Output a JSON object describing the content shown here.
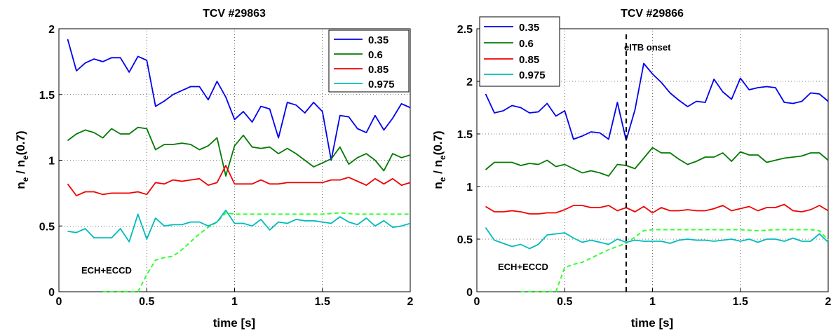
{
  "chart_data": [
    {
      "type": "line",
      "title": "TCV #29863",
      "xlabel": "time [s]",
      "ylabel": "n_e / n_e(0.7)",
      "ylabel_parts": {
        "n": "n",
        "e": "e",
        "mid": " / n",
        "e2": "e",
        "tail": "(0.7)"
      },
      "xlim": [
        0,
        2
      ],
      "ylim": [
        0,
        2
      ],
      "xticks": [
        "0",
        "0.5",
        "1",
        "1.5",
        "2"
      ],
      "yticks": [
        "0",
        "0.5",
        "1",
        "1.5",
        "2"
      ],
      "grid": true,
      "legend_position": "top-right",
      "x": [
        0.05,
        0.1,
        0.15,
        0.2,
        0.25,
        0.3,
        0.35,
        0.4,
        0.45,
        0.5,
        0.55,
        0.6,
        0.65,
        0.7,
        0.75,
        0.8,
        0.85,
        0.9,
        0.95,
        1.0,
        1.05,
        1.1,
        1.15,
        1.2,
        1.25,
        1.3,
        1.35,
        1.4,
        1.45,
        1.5,
        1.55,
        1.6,
        1.65,
        1.7,
        1.75,
        1.8,
        1.85,
        1.9,
        1.95,
        2.0
      ],
      "series": [
        {
          "name": "0.35",
          "color": "#0000ee",
          "values": [
            1.92,
            1.68,
            1.74,
            1.77,
            1.75,
            1.78,
            1.78,
            1.67,
            1.79,
            1.76,
            1.41,
            1.45,
            1.5,
            1.53,
            1.56,
            1.56,
            1.46,
            1.6,
            1.48,
            1.31,
            1.37,
            1.29,
            1.41,
            1.39,
            1.17,
            1.44,
            1.42,
            1.36,
            1.44,
            1.37,
            1.0,
            1.34,
            1.33,
            1.24,
            1.21,
            1.34,
            1.23,
            1.32,
            1.43,
            1.4
          ]
        },
        {
          "name": "0.6",
          "color": "#007a00",
          "values": [
            1.15,
            1.2,
            1.23,
            1.21,
            1.17,
            1.24,
            1.2,
            1.2,
            1.25,
            1.24,
            1.08,
            1.12,
            1.12,
            1.13,
            1.12,
            1.08,
            1.11,
            1.17,
            0.88,
            1.11,
            1.19,
            1.1,
            1.09,
            1.1,
            1.05,
            1.09,
            1.05,
            1.0,
            0.95,
            0.98,
            1.01,
            1.1,
            0.97,
            1.02,
            1.05,
            1.0,
            0.92,
            1.05,
            1.02,
            1.04
          ]
        },
        {
          "name": "0.85",
          "color": "#ee0000",
          "values": [
            0.82,
            0.73,
            0.76,
            0.76,
            0.74,
            0.75,
            0.75,
            0.75,
            0.76,
            0.74,
            0.83,
            0.82,
            0.85,
            0.84,
            0.85,
            0.86,
            0.81,
            0.83,
            0.96,
            0.82,
            0.82,
            0.82,
            0.85,
            0.82,
            0.82,
            0.83,
            0.83,
            0.83,
            0.83,
            0.83,
            0.85,
            0.85,
            0.87,
            0.84,
            0.81,
            0.86,
            0.82,
            0.86,
            0.81,
            0.83
          ]
        },
        {
          "name": "0.975",
          "color": "#00bbbb",
          "values": [
            0.46,
            0.45,
            0.48,
            0.41,
            0.41,
            0.41,
            0.48,
            0.38,
            0.59,
            0.4,
            0.56,
            0.5,
            0.51,
            0.51,
            0.53,
            0.53,
            0.5,
            0.53,
            0.62,
            0.52,
            0.52,
            0.5,
            0.55,
            0.47,
            0.53,
            0.52,
            0.55,
            0.54,
            0.54,
            0.53,
            0.52,
            0.57,
            0.53,
            0.51,
            0.56,
            0.5,
            0.54,
            0.49,
            0.5,
            0.52
          ]
        }
      ],
      "ech": {
        "label": "ECH+ECCD",
        "color": "#33ff33",
        "x": [
          0.25,
          0.3,
          0.35,
          0.4,
          0.45,
          0.5,
          0.55,
          0.6,
          0.65,
          0.7,
          0.75,
          0.8,
          0.85,
          0.9,
          0.95,
          1.0,
          1.1,
          1.2,
          1.3,
          1.4,
          1.5,
          1.6,
          1.7,
          1.8,
          1.9,
          2.0
        ],
        "values": [
          0.0,
          0.0,
          0.0,
          0.0,
          0.0,
          0.13,
          0.24,
          0.26,
          0.27,
          0.32,
          0.38,
          0.44,
          0.49,
          0.53,
          0.6,
          0.59,
          0.59,
          0.59,
          0.59,
          0.59,
          0.59,
          0.6,
          0.59,
          0.59,
          0.59,
          0.59
        ]
      }
    },
    {
      "type": "line",
      "title": "TCV #29866",
      "xlabel": "time [s]",
      "ylabel": "n_e / n_e(0.7)",
      "ylabel_parts": {
        "n": "n",
        "e": "e",
        "mid": " / n",
        "e2": "e",
        "tail": "(0.7)"
      },
      "xlim": [
        0,
        2
      ],
      "ylim": [
        0,
        2.5
      ],
      "xticks": [
        "0",
        "0.5",
        "1",
        "1.5",
        "2"
      ],
      "yticks": [
        "0",
        "0.5",
        "1",
        "1.5",
        "2",
        "2.5"
      ],
      "grid": true,
      "legend_position": "top-left",
      "x": [
        0.05,
        0.1,
        0.15,
        0.2,
        0.25,
        0.3,
        0.35,
        0.4,
        0.45,
        0.5,
        0.55,
        0.6,
        0.65,
        0.7,
        0.75,
        0.8,
        0.85,
        0.9,
        0.95,
        1.0,
        1.05,
        1.1,
        1.15,
        1.2,
        1.25,
        1.3,
        1.35,
        1.4,
        1.45,
        1.5,
        1.55,
        1.6,
        1.65,
        1.7,
        1.75,
        1.8,
        1.85,
        1.9,
        1.95,
        2.0
      ],
      "series": [
        {
          "name": "0.35",
          "color": "#0000ee",
          "values": [
            1.88,
            1.7,
            1.72,
            1.77,
            1.75,
            1.7,
            1.71,
            1.79,
            1.67,
            1.72,
            1.45,
            1.48,
            1.52,
            1.51,
            1.45,
            1.8,
            1.44,
            1.73,
            2.17,
            2.07,
            1.99,
            1.89,
            1.82,
            1.76,
            1.81,
            1.8,
            2.02,
            1.9,
            1.83,
            2.03,
            1.92,
            1.94,
            1.95,
            1.94,
            1.8,
            1.79,
            1.81,
            1.89,
            1.88,
            1.81
          ]
        },
        {
          "name": "0.6",
          "color": "#007a00",
          "values": [
            1.16,
            1.23,
            1.23,
            1.23,
            1.2,
            1.22,
            1.21,
            1.25,
            1.19,
            1.21,
            1.17,
            1.13,
            1.15,
            1.13,
            1.1,
            1.21,
            1.2,
            1.17,
            1.27,
            1.37,
            1.32,
            1.32,
            1.26,
            1.21,
            1.24,
            1.28,
            1.28,
            1.32,
            1.24,
            1.33,
            1.3,
            1.3,
            1.23,
            1.25,
            1.27,
            1.28,
            1.29,
            1.32,
            1.32,
            1.25
          ]
        },
        {
          "name": "0.85",
          "color": "#ee0000",
          "values": [
            0.81,
            0.76,
            0.76,
            0.77,
            0.76,
            0.74,
            0.74,
            0.75,
            0.75,
            0.78,
            0.82,
            0.82,
            0.8,
            0.8,
            0.82,
            0.77,
            0.8,
            0.76,
            0.81,
            0.75,
            0.8,
            0.77,
            0.77,
            0.78,
            0.77,
            0.77,
            0.79,
            0.82,
            0.77,
            0.79,
            0.81,
            0.77,
            0.8,
            0.8,
            0.83,
            0.77,
            0.76,
            0.78,
            0.82,
            0.77
          ]
        },
        {
          "name": "0.975",
          "color": "#00bbbb",
          "values": [
            0.61,
            0.49,
            0.46,
            0.43,
            0.45,
            0.41,
            0.45,
            0.54,
            0.55,
            0.56,
            0.51,
            0.47,
            0.49,
            0.47,
            0.45,
            0.5,
            0.47,
            0.49,
            0.48,
            0.48,
            0.48,
            0.46,
            0.49,
            0.5,
            0.49,
            0.49,
            0.48,
            0.49,
            0.5,
            0.48,
            0.5,
            0.47,
            0.5,
            0.5,
            0.48,
            0.51,
            0.48,
            0.48,
            0.55,
            0.47
          ]
        }
      ],
      "vline": {
        "x": 0.85,
        "label": "eITB onset"
      },
      "ech": {
        "label": "ECH+ECCD",
        "color": "#33ff33",
        "x": [
          0.25,
          0.3,
          0.35,
          0.4,
          0.45,
          0.5,
          0.55,
          0.6,
          0.65,
          0.7,
          0.75,
          0.8,
          0.85,
          0.9,
          0.95,
          1.0,
          1.1,
          1.2,
          1.3,
          1.4,
          1.5,
          1.6,
          1.7,
          1.8,
          1.9,
          1.95,
          2.0
        ],
        "values": [
          0.0,
          0.0,
          0.0,
          0.0,
          0.0,
          0.23,
          0.26,
          0.28,
          0.32,
          0.36,
          0.4,
          0.43,
          0.46,
          0.52,
          0.58,
          0.59,
          0.59,
          0.59,
          0.59,
          0.59,
          0.59,
          0.58,
          0.59,
          0.59,
          0.59,
          0.58,
          0.49
        ]
      }
    }
  ]
}
